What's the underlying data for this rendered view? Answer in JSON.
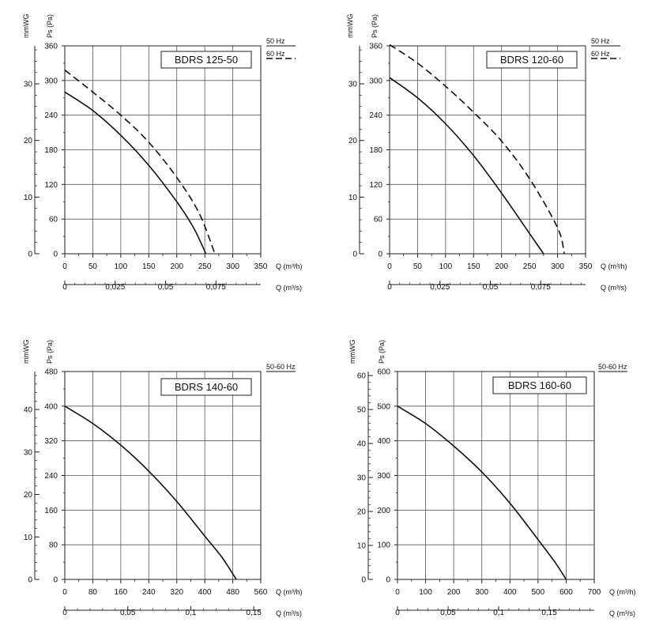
{
  "chart_data": [
    {
      "type": "line",
      "title": "BDRS 125-50",
      "left_axis_title": "mmWG",
      "pa_axis_title": "Ps (Pa)",
      "x_label_m3h": "Q (m³/h)",
      "x_label_m3s": "Q (m³/s)",
      "x_ticks_m3h": [
        "0",
        "50",
        "100",
        "150",
        "200",
        "250",
        "300",
        "350"
      ],
      "x_ticks_m3s": [
        "0",
        "0,025",
        "0,05",
        "0,075"
      ],
      "y_ticks_pa": [
        "0",
        "60",
        "120",
        "180",
        "240",
        "300",
        "360"
      ],
      "y_ticks_mmwg": [
        "0",
        "10",
        "20",
        "30"
      ],
      "xlim": [
        0,
        350
      ],
      "ylim": [
        0,
        360
      ],
      "legend": [
        "50 Hz",
        "60 Hz"
      ],
      "series": [
        {
          "name": "50 Hz",
          "dash": false,
          "x": [
            0,
            50,
            100,
            150,
            200,
            230,
            252
          ],
          "y": [
            280,
            248,
            205,
            153,
            90,
            45,
            0
          ]
        },
        {
          "name": "60 Hz",
          "dash": true,
          "x": [
            0,
            50,
            100,
            150,
            200,
            240,
            268
          ],
          "y": [
            318,
            280,
            240,
            193,
            132,
            70,
            0
          ]
        }
      ]
    },
    {
      "type": "line",
      "title": "BDRS 120-60",
      "left_axis_title": "mmWG",
      "pa_axis_title": "Ps (Pa)",
      "x_label_m3h": "Q (m³/h)",
      "x_label_m3s": "Q (m³/s)",
      "x_ticks_m3h": [
        "0",
        "50",
        "100",
        "150",
        "200",
        "250",
        "300",
        "350"
      ],
      "x_ticks_m3s": [
        "0",
        "0,025",
        "0,05",
        "0,075"
      ],
      "y_ticks_pa": [
        "0",
        "60",
        "120",
        "180",
        "240",
        "300",
        "360"
      ],
      "y_ticks_mmwg": [
        "0",
        "10",
        "20",
        "30"
      ],
      "xlim": [
        0,
        350
      ],
      "ylim": [
        0,
        360
      ],
      "legend": [
        "50 Hz",
        "60 Hz"
      ],
      "series": [
        {
          "name": "50 Hz",
          "dash": false,
          "x": [
            0,
            50,
            100,
            150,
            200,
            250,
            275
          ],
          "y": [
            305,
            270,
            225,
            170,
            105,
            35,
            0
          ]
        },
        {
          "name": "60 Hz",
          "dash": true,
          "x": [
            0,
            50,
            100,
            150,
            200,
            250,
            300,
            312
          ],
          "y": [
            362,
            330,
            290,
            245,
            195,
            130,
            45,
            0
          ]
        }
      ]
    },
    {
      "type": "line",
      "title": "BDRS 140-60",
      "left_axis_title": "mmWG",
      "pa_axis_title": "Ps (Pa)",
      "x_label_m3h": "Q (m³/h)",
      "x_label_m3s": "Q (m³/s)",
      "x_ticks_m3h": [
        "0",
        "80",
        "160",
        "240",
        "320",
        "400",
        "480",
        "560"
      ],
      "x_ticks_m3s": [
        "0",
        "0,05",
        "0,1",
        "0,15"
      ],
      "y_ticks_pa": [
        "0",
        "80",
        "160",
        "240",
        "320",
        "400",
        "480"
      ],
      "y_ticks_mmwg": [
        "0",
        "10",
        "20",
        "30",
        "40"
      ],
      "xlim": [
        0,
        560
      ],
      "ylim": [
        0,
        480
      ],
      "legend": [
        "50-60 Hz"
      ],
      "series": [
        {
          "name": "50-60 Hz",
          "dash": false,
          "x": [
            0,
            80,
            160,
            240,
            320,
            400,
            450,
            490
          ],
          "y": [
            400,
            360,
            310,
            250,
            180,
            100,
            50,
            0
          ]
        }
      ]
    },
    {
      "type": "line",
      "title": "BDRS 160-60",
      "left_axis_title": "mmWG",
      "pa_axis_title": "Ps (Pa)",
      "x_label_m3h": "Q (m³/h)",
      "x_label_m3s": "Q (m³/s)",
      "x_ticks_m3h": [
        "0",
        "100",
        "200",
        "300",
        "400",
        "500",
        "600",
        "700"
      ],
      "x_ticks_m3s": [
        "0",
        "0,05",
        "0,1",
        "0,15"
      ],
      "y_ticks_pa": [
        "0",
        "100",
        "200",
        "300",
        "400",
        "500",
        "600"
      ],
      "y_ticks_mmwg": [
        "0",
        "10",
        "20",
        "30",
        "40",
        "50",
        "60"
      ],
      "xlim": [
        0,
        700
      ],
      "ylim": [
        0,
        600
      ],
      "legend": [
        "50-60 Hz"
      ],
      "series": [
        {
          "name": "50-60 Hz",
          "dash": false,
          "x": [
            0,
            100,
            200,
            300,
            400,
            500,
            560,
            600
          ],
          "y": [
            500,
            450,
            385,
            310,
            220,
            115,
            50,
            0
          ]
        }
      ]
    }
  ]
}
